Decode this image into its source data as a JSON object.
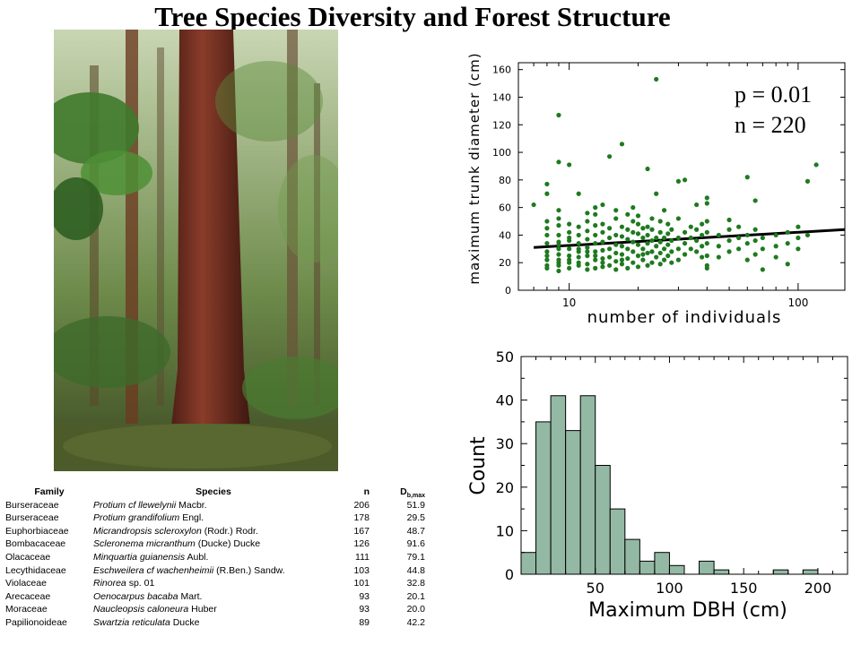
{
  "title": "Tree Species Diversity and Forest Structure",
  "photo": {
    "kind": "rainforest photograph",
    "colors": {
      "sky": "#c9d6b3",
      "trunk": "#7a3424",
      "leaves": "#3f7a2c",
      "floor": "#4d5a2a"
    }
  },
  "table": {
    "headers": {
      "family": "Family",
      "species": "Species",
      "n": "n",
      "dmax": "D",
      "dmax_sub": "b,max"
    },
    "rows": [
      {
        "family": "Burseraceae",
        "species": "Protium cf llewelynii",
        "author": "Macbr.",
        "n": "206",
        "dmax": "51.9"
      },
      {
        "family": "Burseraceae",
        "species": "Protium grandifolium",
        "author": "Engl.",
        "n": "178",
        "dmax": "29.5"
      },
      {
        "family": "Euphorbiaceae",
        "species": "Micrandropsis scleroxylon",
        "author": "(Rodr.) Rodr.",
        "n": "167",
        "dmax": "48.7"
      },
      {
        "family": "Bombacaceae",
        "species": "Scleronema micranthum",
        "author": "(Ducke) Ducke",
        "n": "126",
        "dmax": "91.6"
      },
      {
        "family": "Olacaceae",
        "species": "Minquartia guianensis",
        "author": "Aubl.",
        "n": "111",
        "dmax": "79.1"
      },
      {
        "family": "Lecythidaceae",
        "species": "Eschweilera cf wachenheimii",
        "author": "(R.Ben.) Sandw.",
        "n": "103",
        "dmax": "44.8"
      },
      {
        "family": "Violaceae",
        "species": "Rinorea",
        "author": "sp. 01",
        "n": "101",
        "dmax": "32.8"
      },
      {
        "family": "Arecaceae",
        "species": "Oenocarpus bacaba",
        "author": "Mart.",
        "n": "93",
        "dmax": "20.1"
      },
      {
        "family": "Moraceae",
        "species": "Naucleopsis caloneura",
        "author": "Huber",
        "n": "93",
        "dmax": "20.0"
      },
      {
        "family": "Papilionoideae",
        "species": "Swartzia reticulata",
        "author": "Ducke",
        "n": "89",
        "dmax": "42.2"
      }
    ]
  },
  "chart_data": [
    {
      "type": "scatter",
      "xlabel": "number of individuals",
      "ylabel": "maximum trunk diameter (cm)",
      "xscale": "log",
      "xlim": [
        6,
        160
      ],
      "ylim": [
        0,
        165
      ],
      "x_ticks": [
        10,
        100
      ],
      "y_ticks": [
        0,
        20,
        40,
        60,
        80,
        100,
        120,
        140,
        160
      ],
      "grid": false,
      "annotations": [
        "p = 0.01",
        "n = 220"
      ],
      "annotation_position": "top-right",
      "point_color": "#1f7a1f",
      "trendline": {
        "x": [
          7,
          160
        ],
        "y": [
          31,
          44
        ],
        "color": "#000000"
      },
      "points": [
        [
          7,
          62
        ],
        [
          8,
          16
        ],
        [
          8,
          22
        ],
        [
          8,
          28
        ],
        [
          8,
          34
        ],
        [
          8,
          40
        ],
        [
          8,
          45
        ],
        [
          8,
          50
        ],
        [
          8,
          70
        ],
        [
          8,
          77
        ],
        [
          8,
          18
        ],
        [
          8,
          25
        ],
        [
          9,
          14
        ],
        [
          9,
          18
        ],
        [
          9,
          22
        ],
        [
          9,
          26
        ],
        [
          9,
          30
        ],
        [
          9,
          35
        ],
        [
          9,
          40
        ],
        [
          9,
          47
        ],
        [
          9,
          52
        ],
        [
          9,
          58
        ],
        [
          9,
          93
        ],
        [
          9,
          127
        ],
        [
          9,
          20
        ],
        [
          9,
          33
        ],
        [
          10,
          16
        ],
        [
          10,
          20
        ],
        [
          10,
          25
        ],
        [
          10,
          30
        ],
        [
          10,
          36
        ],
        [
          10,
          42
        ],
        [
          10,
          48
        ],
        [
          10,
          91
        ],
        [
          10,
          22
        ],
        [
          10,
          38
        ],
        [
          11,
          18
        ],
        [
          11,
          24
        ],
        [
          11,
          28
        ],
        [
          11,
          34
        ],
        [
          11,
          40
        ],
        [
          11,
          46
        ],
        [
          11,
          70
        ],
        [
          11,
          20
        ],
        [
          11,
          30
        ],
        [
          12,
          15
        ],
        [
          12,
          19
        ],
        [
          12,
          25
        ],
        [
          12,
          31
        ],
        [
          12,
          37
        ],
        [
          12,
          43
        ],
        [
          12,
          50
        ],
        [
          12,
          56
        ],
        [
          12,
          28
        ],
        [
          13,
          16
        ],
        [
          13,
          22
        ],
        [
          13,
          28
        ],
        [
          13,
          34
        ],
        [
          13,
          40
        ],
        [
          13,
          47
        ],
        [
          13,
          55
        ],
        [
          13,
          60
        ],
        [
          13,
          25
        ],
        [
          14,
          17
        ],
        [
          14,
          23
        ],
        [
          14,
          29
        ],
        [
          14,
          35
        ],
        [
          14,
          42
        ],
        [
          14,
          48
        ],
        [
          14,
          62
        ],
        [
          14,
          20
        ],
        [
          15,
          18
        ],
        [
          15,
          24
        ],
        [
          15,
          30
        ],
        [
          15,
          38
        ],
        [
          15,
          45
        ],
        [
          15,
          97
        ],
        [
          16,
          15
        ],
        [
          16,
          21
        ],
        [
          16,
          27
        ],
        [
          16,
          33
        ],
        [
          16,
          40
        ],
        [
          16,
          52
        ],
        [
          16,
          58
        ],
        [
          17,
          19
        ],
        [
          17,
          26
        ],
        [
          17,
          32
        ],
        [
          17,
          39
        ],
        [
          17,
          46
        ],
        [
          17,
          106
        ],
        [
          17,
          22
        ],
        [
          18,
          16
        ],
        [
          18,
          23
        ],
        [
          18,
          30
        ],
        [
          18,
          37
        ],
        [
          18,
          44
        ],
        [
          18,
          55
        ],
        [
          19,
          20
        ],
        [
          19,
          28
        ],
        [
          19,
          35
        ],
        [
          19,
          42
        ],
        [
          19,
          50
        ],
        [
          19,
          60
        ],
        [
          20,
          17
        ],
        [
          20,
          25
        ],
        [
          20,
          33
        ],
        [
          20,
          41
        ],
        [
          20,
          48
        ],
        [
          20,
          54
        ],
        [
          21,
          22
        ],
        [
          21,
          30
        ],
        [
          21,
          38
        ],
        [
          21,
          45
        ],
        [
          21,
          26
        ],
        [
          22,
          18
        ],
        [
          22,
          27
        ],
        [
          22,
          34
        ],
        [
          22,
          40
        ],
        [
          22,
          46
        ],
        [
          22,
          88
        ],
        [
          23,
          20
        ],
        [
          23,
          28
        ],
        [
          23,
          36
        ],
        [
          23,
          44
        ],
        [
          23,
          52
        ],
        [
          24,
          24
        ],
        [
          24,
          32
        ],
        [
          24,
          38
        ],
        [
          24,
          153
        ],
        [
          24,
          70
        ],
        [
          25,
          19
        ],
        [
          25,
          27
        ],
        [
          25,
          35
        ],
        [
          25,
          42
        ],
        [
          25,
          50
        ],
        [
          26,
          22
        ],
        [
          26,
          30
        ],
        [
          26,
          38
        ],
        [
          26,
          58
        ],
        [
          27,
          25
        ],
        [
          27,
          33
        ],
        [
          27,
          41
        ],
        [
          27,
          48
        ],
        [
          28,
          20
        ],
        [
          28,
          28
        ],
        [
          28,
          36
        ],
        [
          28,
          44
        ],
        [
          30,
          22
        ],
        [
          30,
          30
        ],
        [
          30,
          38
        ],
        [
          30,
          79
        ],
        [
          30,
          52
        ],
        [
          32,
          26
        ],
        [
          32,
          34
        ],
        [
          32,
          42
        ],
        [
          32,
          80
        ],
        [
          34,
          30
        ],
        [
          34,
          38
        ],
        [
          34,
          46
        ],
        [
          36,
          28
        ],
        [
          36,
          36
        ],
        [
          36,
          44
        ],
        [
          36,
          62
        ],
        [
          38,
          24
        ],
        [
          38,
          32
        ],
        [
          38,
          40
        ],
        [
          38,
          48
        ],
        [
          40,
          18
        ],
        [
          40,
          16
        ],
        [
          40,
          25
        ],
        [
          40,
          34
        ],
        [
          40,
          42
        ],
        [
          40,
          50
        ],
        [
          40,
          67
        ],
        [
          40,
          63
        ],
        [
          45,
          24
        ],
        [
          45,
          32
        ],
        [
          45,
          40
        ],
        [
          50,
          28
        ],
        [
          50,
          36
        ],
        [
          50,
          44
        ],
        [
          50,
          51
        ],
        [
          55,
          30
        ],
        [
          55,
          38
        ],
        [
          55,
          46
        ],
        [
          60,
          22
        ],
        [
          60,
          34
        ],
        [
          60,
          40
        ],
        [
          60,
          82
        ],
        [
          65,
          26
        ],
        [
          65,
          36
        ],
        [
          65,
          44
        ],
        [
          65,
          65
        ],
        [
          70,
          15
        ],
        [
          70,
          30
        ],
        [
          70,
          38
        ],
        [
          80,
          24
        ],
        [
          80,
          32
        ],
        [
          80,
          40
        ],
        [
          90,
          19
        ],
        [
          90,
          34
        ],
        [
          90,
          42
        ],
        [
          100,
          30
        ],
        [
          100,
          38
        ],
        [
          100,
          46
        ],
        [
          110,
          79
        ],
        [
          110,
          40
        ],
        [
          120,
          91
        ]
      ]
    },
    {
      "type": "bar",
      "subtype": "histogram",
      "xlabel": "Maximum DBH (cm)",
      "ylabel": "Count",
      "xlim": [
        0,
        220
      ],
      "ylim": [
        0,
        50
      ],
      "x_ticks": [
        50,
        100,
        150,
        200
      ],
      "y_ticks": [
        0,
        10,
        20,
        30,
        40,
        50
      ],
      "bin_width": 10,
      "bar_color": "#93b9a4",
      "bin_starts": [
        0,
        10,
        20,
        30,
        40,
        50,
        60,
        70,
        80,
        90,
        100,
        110,
        120,
        130,
        140,
        150,
        160,
        170,
        180,
        190,
        200
      ],
      "values": [
        5,
        35,
        41,
        33,
        41,
        25,
        15,
        8,
        3,
        5,
        2,
        0,
        3,
        1,
        0,
        0,
        0,
        1,
        0,
        1,
        0
      ]
    }
  ]
}
